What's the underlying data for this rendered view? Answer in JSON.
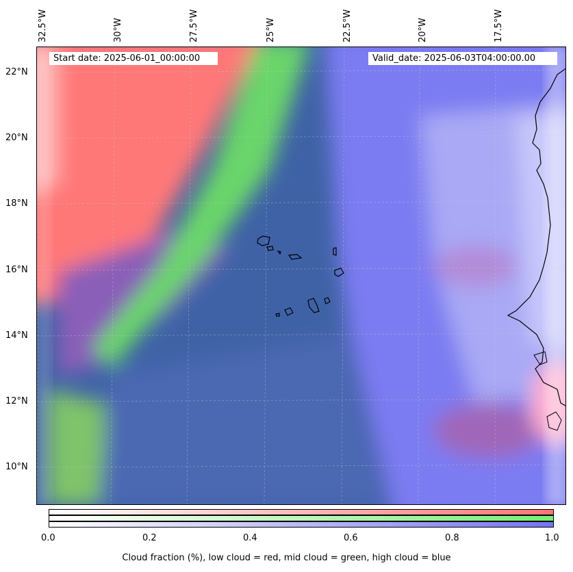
{
  "map": {
    "lon_labels": [
      "32.5°W",
      "30°W",
      "27.5°W",
      "25°W",
      "22.5°W",
      "20°W",
      "17.5°W"
    ],
    "lat_labels": [
      "22°N",
      "20°N",
      "18°N",
      "16°N",
      "14°N",
      "12°N",
      "10°N"
    ],
    "start_date": "Start date: 2025-06-01_00:00:00",
    "valid_date": "Valid_date: 2025-06-03T04:00:00.00",
    "layers": {
      "low_cloud_color": "#ff7a7a",
      "mid_cloud_color": "#6fea6f",
      "high_cloud_color": "#7474ee",
      "ocean_dark": "#3d63a8"
    }
  },
  "colorbar": {
    "ticks": [
      "0.0",
      "0.2",
      "0.4",
      "0.6",
      "0.8",
      "1.0"
    ],
    "caption": "Cloud fraction (%), low cloud = red, mid cloud = green, high cloud = blue",
    "colors": [
      "#ff7474",
      "#74f074",
      "#7474f4"
    ]
  }
}
